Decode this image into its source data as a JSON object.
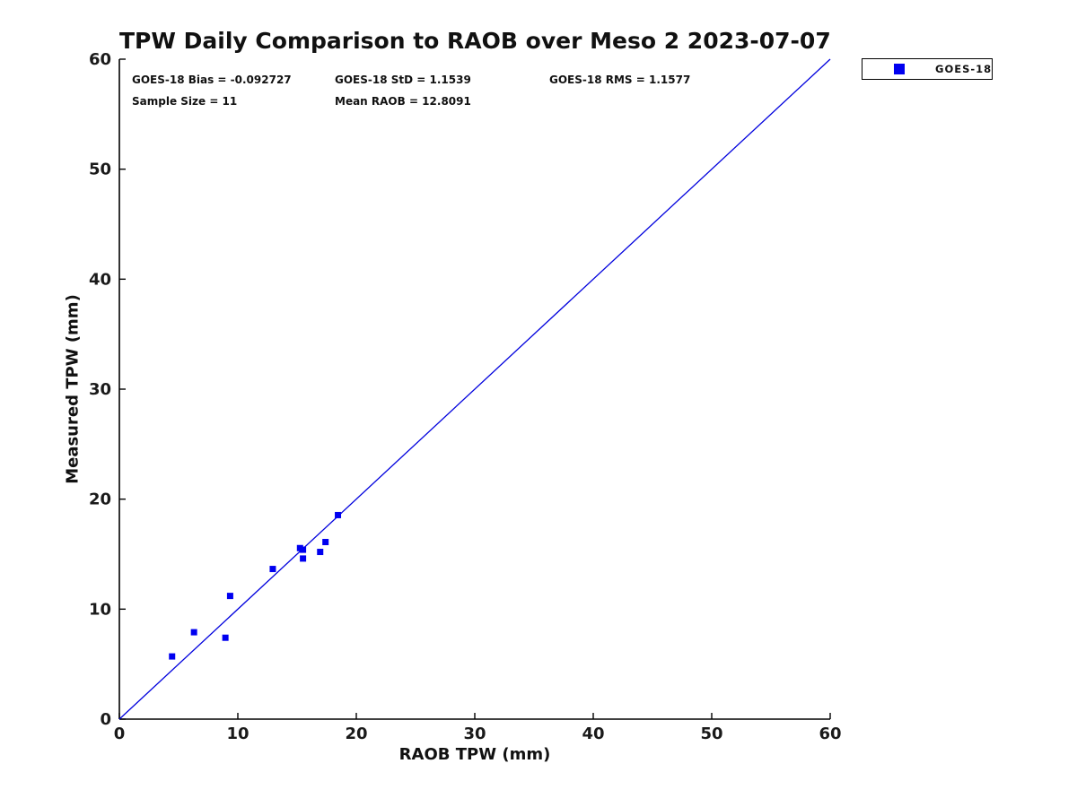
{
  "title": "TPW Daily Comparison to RAOB over Meso 2 2023-07-07",
  "stats": {
    "line1": [
      "GOES-18 Bias = -0.092727",
      "GOES-18 StD = 1.1539",
      "GOES-18 RMS = 1.1577"
    ],
    "line2": [
      "Sample Size = 11",
      "Mean RAOB = 12.8091"
    ]
  },
  "chart_data": {
    "type": "scatter",
    "title": "TPW Daily Comparison to RAOB over Meso 2 2023-07-07",
    "xlabel": "RAOB TPW (mm)",
    "ylabel": "Measured TPW (mm)",
    "xlim": [
      0,
      60
    ],
    "ylim": [
      0,
      60
    ],
    "xticks": [
      0,
      10,
      20,
      30,
      40,
      50,
      60
    ],
    "yticks": [
      0,
      10,
      20,
      30,
      40,
      50,
      60
    ],
    "grid": false,
    "legend_position": "outside-top-right",
    "axis_color": "#000000",
    "series": [
      {
        "name": "GOES-18",
        "marker": "square",
        "color": "#0000f0",
        "points": [
          [
            4.45,
            5.7
          ],
          [
            6.3,
            7.9
          ],
          [
            8.95,
            7.4
          ],
          [
            9.35,
            11.2
          ],
          [
            12.95,
            13.65
          ],
          [
            15.25,
            15.55
          ],
          [
            15.5,
            15.4
          ],
          [
            15.5,
            14.6
          ],
          [
            16.95,
            15.2
          ],
          [
            17.4,
            16.1
          ],
          [
            18.45,
            18.55
          ]
        ]
      }
    ],
    "reference_line": {
      "from": [
        0,
        0
      ],
      "to": [
        60,
        60
      ],
      "color": "#0000dd",
      "meaning": "1:1 identity line"
    },
    "stats": {
      "bias": -0.092727,
      "std": 1.1539,
      "rms": 1.1577,
      "sample_size": 11,
      "mean_raob": 12.8091
    }
  }
}
